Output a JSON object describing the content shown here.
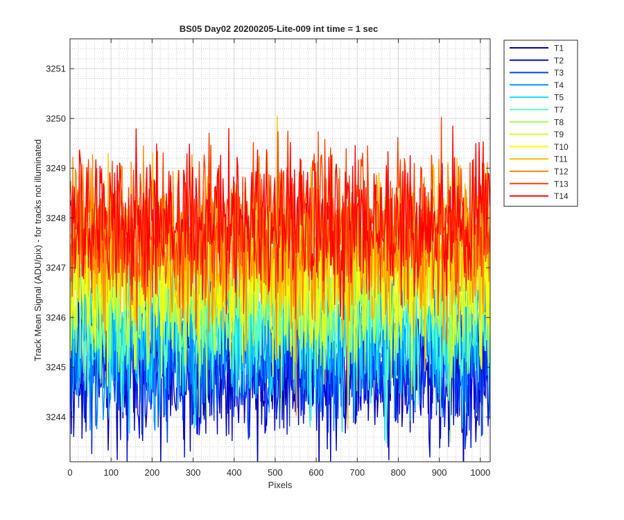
{
  "chart_data": {
    "type": "line",
    "title": "BS05 Day02 20200205-Lite-009 int time = 1 sec",
    "xlabel": "Pixels",
    "ylabel": "Track Mean Signal (ADU/pix) - for tracks not illuminated",
    "xlim": [
      0,
      1024
    ],
    "ylim": [
      3243.1,
      3251.6
    ],
    "xticks": [
      0,
      100,
      200,
      300,
      400,
      500,
      600,
      700,
      800,
      900,
      1000
    ],
    "yticks": [
      3244,
      3245,
      3246,
      3247,
      3248,
      3249,
      3250,
      3251
    ],
    "grid": "major and minor",
    "legend_location": "outside-right-top",
    "series": [
      {
        "name": "T1",
        "color": "#0000b0",
        "mean": 3245.0,
        "spread": 1.05
      },
      {
        "name": "T2",
        "color": "#0008d8",
        "mean": 3245.1,
        "spread": 1.0
      },
      {
        "name": "T3",
        "color": "#0040ff",
        "mean": 3245.3,
        "spread": 1.0
      },
      {
        "name": "T4",
        "color": "#0090ff",
        "mean": 3245.5,
        "spread": 1.0
      },
      {
        "name": "T5",
        "color": "#10d8ff",
        "mean": 3245.8,
        "spread": 1.05
      },
      {
        "name": "T7",
        "color": "#5cffc0",
        "mean": 3246.1,
        "spread": 1.05
      },
      {
        "name": "T8",
        "color": "#a0ff60",
        "mean": 3246.4,
        "spread": 1.05
      },
      {
        "name": "T9",
        "color": "#d8ff28",
        "mean": 3246.7,
        "spread": 1.05
      },
      {
        "name": "T10",
        "color": "#ffff00",
        "mean": 3247.0,
        "spread": 1.05
      },
      {
        "name": "T11",
        "color": "#ffc000",
        "mean": 3247.3,
        "spread": 1.05
      },
      {
        "name": "T12",
        "color": "#ff8a00",
        "mean": 3247.6,
        "spread": 1.05
      },
      {
        "name": "T13",
        "color": "#ff4000",
        "mean": 3247.8,
        "spread": 1.05
      },
      {
        "name": "T14",
        "color": "#ff0000",
        "mean": 3247.9,
        "spread": 0.95
      }
    ]
  }
}
